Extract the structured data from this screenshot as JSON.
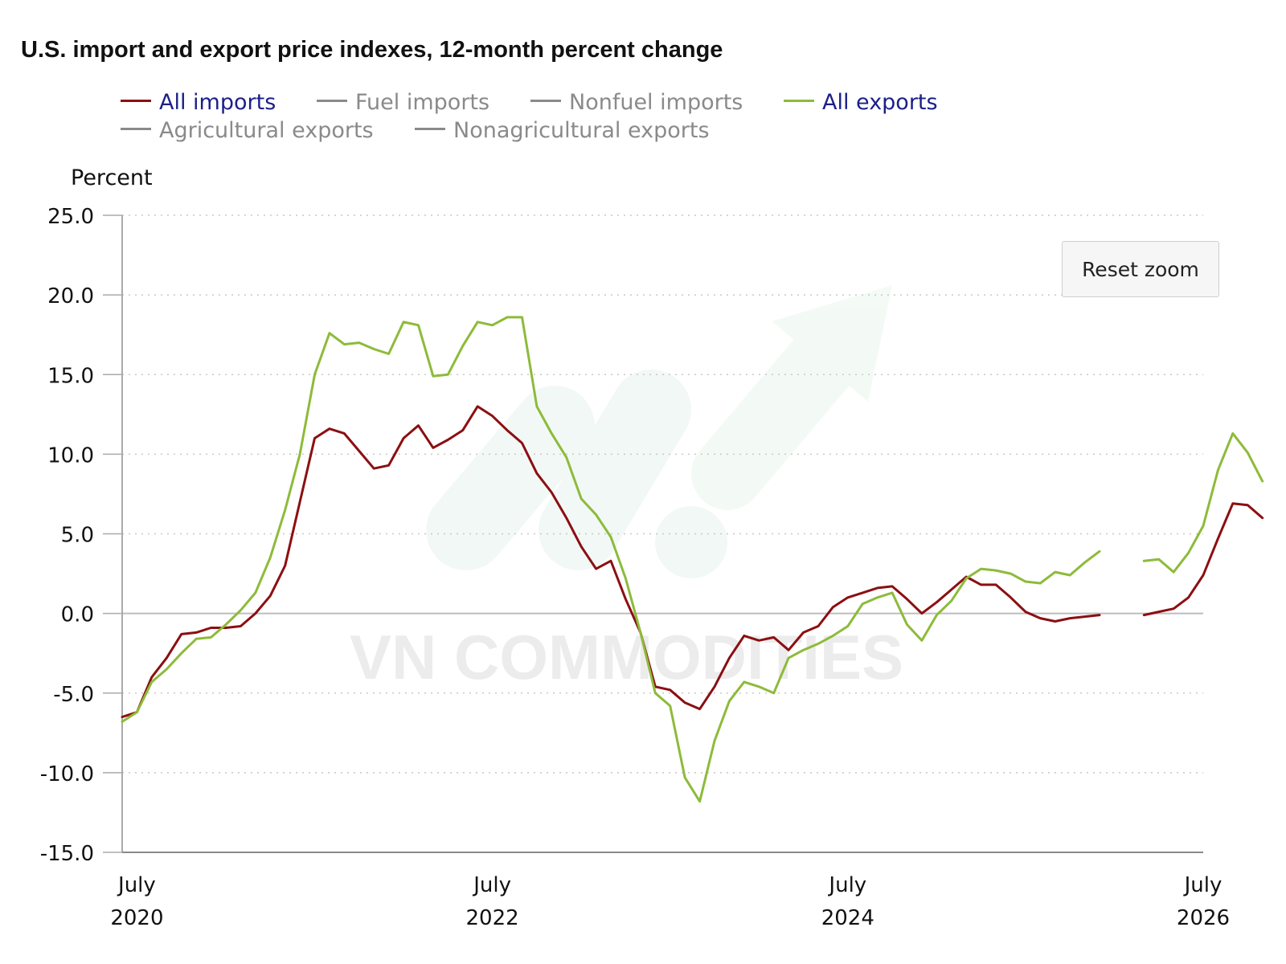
{
  "chart_data": {
    "type": "line",
    "title": "U.S. import and export price indexes, 12-month percent change",
    "ylabel": "Percent",
    "ylim": [
      -15,
      25
    ],
    "yticks": [
      25,
      20,
      15,
      10,
      5,
      0,
      -5,
      -10,
      -15
    ],
    "ytick_labels": [
      "25.0",
      "20.0",
      "15.0",
      "10.0",
      "5.0",
      "0.0",
      "-5.0",
      "-10.0",
      "-15.0"
    ],
    "x_start": "2020-06",
    "xlim": [
      "2020-06",
      "2026-07"
    ],
    "xticks": [
      "2020-07",
      "2022-07",
      "2024-07",
      "2026-07"
    ],
    "xtick_labels": [
      [
        "July",
        "2020"
      ],
      [
        "July",
        "2022"
      ],
      [
        "July",
        "2024"
      ],
      [
        "July",
        "2026"
      ]
    ],
    "grid": "horizontal dotted",
    "legend_position": "top",
    "series": [
      {
        "name": "All imports",
        "color": "#8b0f12",
        "visible": true,
        "values": [
          -6.5,
          -6.2,
          -4,
          -2.8,
          -1.3,
          -1.2,
          -0.9,
          -0.9,
          -0.8,
          0,
          1.1,
          3.0,
          7,
          11,
          11.6,
          11.3,
          10.2,
          9.1,
          9.3,
          11,
          11.8,
          10.4,
          10.9,
          11.5,
          13.0,
          12.4,
          11.5,
          10.7,
          8.8,
          7.6,
          6.0,
          4.2,
          2.8,
          3.3,
          0.9,
          -1.2,
          -4.6,
          -4.8,
          -5.6,
          -6,
          -4.6,
          -2.8,
          -1.4,
          -1.7,
          -1.5,
          -2.3,
          -1.2,
          -0.8,
          0.4,
          1.0,
          1.3,
          1.6,
          1.7,
          0.9,
          0,
          0.7,
          1.5,
          2.3,
          1.8,
          1.8,
          1.0,
          0.1,
          -0.3,
          -0.5,
          -0.3,
          -0.2,
          -0.1,
          null,
          null,
          -0.1,
          0.1,
          0.3,
          1.0,
          2.4,
          4.7,
          6.9,
          6.8,
          6.0
        ]
      },
      {
        "name": "Fuel imports",
        "color": "#8a8a8a",
        "visible": false,
        "values": []
      },
      {
        "name": "Nonfuel imports",
        "color": "#8a8a8a",
        "visible": false,
        "values": []
      },
      {
        "name": "All exports",
        "color": "#8dbb3a",
        "visible": true,
        "values": [
          -6.8,
          -6.2,
          -4.3,
          -3.5,
          -2.5,
          -1.6,
          -1.5,
          -0.7,
          0.2,
          1.3,
          3.5,
          6.5,
          10,
          15,
          17.6,
          16.9,
          17.0,
          16.6,
          16.3,
          18.3,
          18.1,
          14.9,
          15.0,
          16.8,
          18.3,
          18.1,
          18.6,
          18.6,
          13,
          11.3,
          9.8,
          7.2,
          6.2,
          4.8,
          2.2,
          -1.2,
          -5,
          -5.8,
          -10.3,
          -11.8,
          -8,
          -5.5,
          -4.3,
          -4.6,
          -5.0,
          -2.8,
          -2.3,
          -1.9,
          -1.4,
          -0.8,
          0.6,
          1.0,
          1.3,
          -0.7,
          -1.7,
          -0.1,
          0.8,
          2.2,
          2.8,
          2.7,
          2.5,
          2.0,
          1.9,
          2.6,
          2.4,
          3.2,
          3.9,
          null,
          null,
          3.3,
          3.4,
          2.6,
          3.8,
          5.5,
          9,
          11.3,
          10.1,
          8.3
        ]
      },
      {
        "name": "Agricultural exports",
        "color": "#8a8a8a",
        "visible": false,
        "values": []
      },
      {
        "name": "Nonagricultural exports",
        "color": "#8a8a8a",
        "visible": false,
        "values": []
      }
    ]
  },
  "reset_zoom_label": "Reset zoom",
  "watermark": "VN COMMODITIES"
}
